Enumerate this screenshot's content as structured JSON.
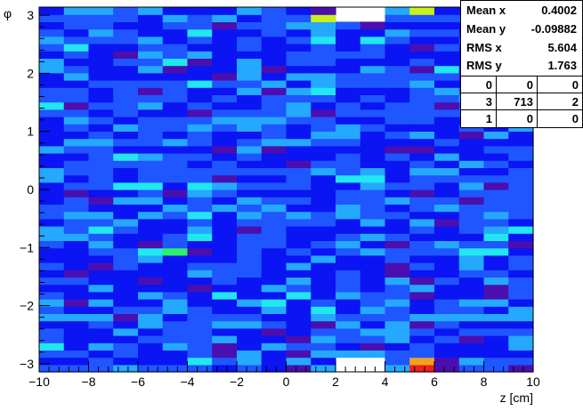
{
  "chart_data": {
    "type": "heatmap",
    "title": "",
    "xlabel": "z [cm]",
    "ylabel": "φ",
    "xlim": [
      -10,
      10
    ],
    "ylim": [
      -3.14,
      3.14
    ],
    "x_ticks": [
      "−10",
      "−8",
      "−6",
      "−4",
      "−2",
      "0",
      "2",
      "4",
      "6",
      "8",
      "10"
    ],
    "y_ticks": [
      "−3",
      "−2",
      "−1",
      "0",
      "1",
      "2",
      "3"
    ],
    "x_tick_values": [
      -10,
      -8,
      -6,
      -4,
      -2,
      0,
      2,
      4,
      6,
      8,
      10
    ],
    "y_tick_values": [
      -3,
      -2,
      -1,
      0,
      1,
      2,
      3
    ],
    "x_bins": 20,
    "y_bins": 50,
    "palette": [
      "#4b0fb0",
      "#0b14f2",
      "#1f56ff",
      "#24a9ff",
      "#22e6f0",
      "#2cf06a",
      "#c8f01e",
      "#f0a21e",
      "#f01e1e"
    ],
    "empty_bins": [
      {
        "z_min": 2.0,
        "z_max": 4.0,
        "phi_min": 2.85,
        "phi_max": 3.14
      },
      {
        "z_min": 2.0,
        "z_max": 4.0,
        "phi_min": -3.14,
        "phi_max": -2.9
      }
    ],
    "hot_spots": [
      {
        "z": 5.5,
        "phi": -3.05,
        "level": 8
      },
      {
        "z": 5.5,
        "phi": -2.95,
        "level": 7
      },
      {
        "z": 5.5,
        "phi": 3.05,
        "level": 6
      },
      {
        "z": 1.5,
        "phi": 3.0,
        "level": 6
      },
      {
        "z": -4.75,
        "phi": -1.05,
        "level": 5
      },
      {
        "z": 3.5,
        "phi": 0.15,
        "level": 4
      },
      {
        "z": -2.5,
        "phi": -1.85,
        "level": 4
      },
      {
        "z": -0.5,
        "phi": -1.9,
        "level": 4
      },
      {
        "z": 3.5,
        "phi": 2.6,
        "level": 4
      },
      {
        "z": 7.5,
        "phi": -1.05,
        "level": 4
      }
    ]
  },
  "stats": {
    "mean_x_label": "Mean x",
    "mean_x_value": "0.4002",
    "mean_y_label": "Mean y",
    "mean_y_value": "-0.09882",
    "rms_x_label": "RMS x",
    "rms_x_value": "5.604",
    "rms_y_label": "RMS y",
    "rms_y_value": "1.763"
  },
  "overflow": {
    "row1": [
      "0",
      "0",
      "0"
    ],
    "row2": [
      "3",
      "713",
      "2"
    ],
    "row3": [
      "1",
      "0",
      "0"
    ]
  }
}
